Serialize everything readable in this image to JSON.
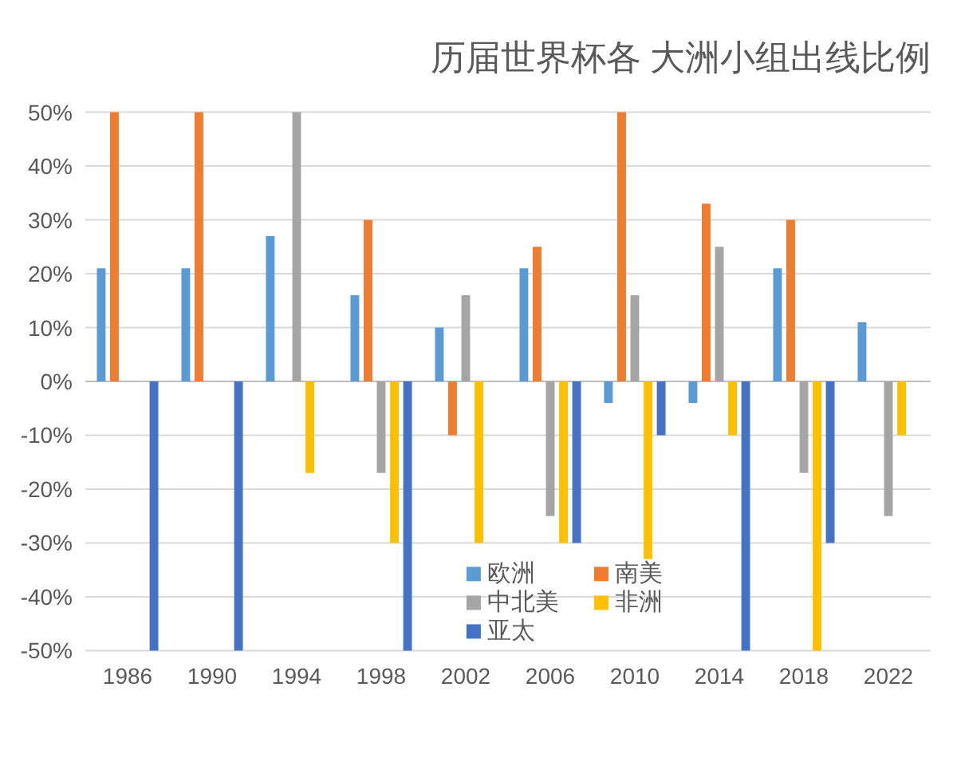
{
  "chart_data": {
    "type": "bar",
    "title": "历届世界杯各 大洲小组出线比例",
    "categories": [
      "1986",
      "1990",
      "1994",
      "1998",
      "2002",
      "2006",
      "2010",
      "2014",
      "2018",
      "2022"
    ],
    "series": [
      {
        "name": "欧洲",
        "color": "#5b9bd5",
        "values": [
          21,
          21,
          27,
          16,
          10,
          21,
          -4,
          -4,
          21,
          11
        ]
      },
      {
        "name": "南美",
        "color": "#ed7d31",
        "values": [
          50,
          50,
          null,
          30,
          -10,
          25,
          50,
          33,
          30,
          null
        ]
      },
      {
        "name": "中北美",
        "color": "#a5a5a5",
        "values": [
          null,
          null,
          50,
          -17,
          16,
          -25,
          16,
          25,
          -17,
          -25
        ]
      },
      {
        "name": "非洲",
        "color": "#ffc000",
        "values": [
          null,
          null,
          -17,
          -30,
          -30,
          -30,
          -33,
          -10,
          -50,
          -10
        ]
      },
      {
        "name": "亚太",
        "color": "#4472c4",
        "values": [
          -50,
          -50,
          null,
          -50,
          null,
          -30,
          -10,
          -50,
          -30,
          null
        ]
      }
    ],
    "ylim": [
      -50,
      50
    ],
    "yticks": [
      {
        "value": 50,
        "label": "50%"
      },
      {
        "value": 40,
        "label": "40%"
      },
      {
        "value": 30,
        "label": "30%"
      },
      {
        "value": 20,
        "label": "20%"
      },
      {
        "value": 10,
        "label": "10%"
      },
      {
        "value": 0,
        "label": "0%"
      },
      {
        "value": -10,
        "label": "-10%"
      },
      {
        "value": -20,
        "label": "-20%"
      },
      {
        "value": -30,
        "label": "-30%"
      },
      {
        "value": -40,
        "label": "-40%"
      },
      {
        "value": -50,
        "label": "-50%"
      }
    ],
    "grid": "y",
    "legend": "bottom"
  }
}
